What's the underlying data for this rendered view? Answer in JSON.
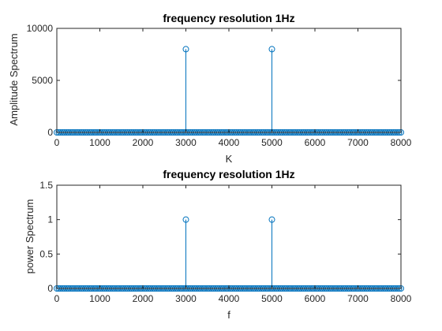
{
  "chart_data": [
    {
      "type": "stem",
      "title": "frequency resolution 1Hz",
      "xlabel": "K",
      "ylabel": "Amplitude Spectrum",
      "xlim": [
        0,
        8000
      ],
      "ylim": [
        0,
        10000
      ],
      "xticks": [
        0,
        1000,
        2000,
        3000,
        4000,
        5000,
        6000,
        7000,
        8000
      ],
      "yticks": [
        0,
        5000,
        10000
      ],
      "xtick_labels": [
        "0",
        "1000",
        "2000",
        "3000",
        "4000",
        "5000",
        "6000",
        "7000",
        "8000"
      ],
      "ytick_labels": [
        "0",
        "5000",
        "10000"
      ],
      "baseline": {
        "start": 0,
        "end": 8000,
        "value": 0,
        "description_of_spacing": 1
      },
      "peaks": [
        {
          "x": 3000,
          "y": 8000
        },
        {
          "x": 5000,
          "y": 8000
        }
      ],
      "marker_color": "#0072BD",
      "grid": false
    },
    {
      "type": "stem",
      "title": "frequency resolution 1Hz",
      "xlabel": "f",
      "ylabel": "power Spectrum",
      "xlim": [
        0,
        8000
      ],
      "ylim": [
        0,
        1.5
      ],
      "xticks": [
        0,
        1000,
        2000,
        3000,
        4000,
        5000,
        6000,
        7000,
        8000
      ],
      "yticks": [
        0,
        0.5,
        1,
        1.5
      ],
      "xtick_labels": [
        "0",
        "1000",
        "2000",
        "3000",
        "4000",
        "5000",
        "6000",
        "7000",
        "8000"
      ],
      "ytick_labels": [
        "0",
        "0.5",
        "1",
        "1.5"
      ],
      "baseline": {
        "start": 0,
        "end": 8000,
        "value": 0,
        "description_of_spacing": 1
      },
      "peaks": [
        {
          "x": 3000,
          "y": 1
        },
        {
          "x": 5000,
          "y": 1
        }
      ],
      "marker_color": "#0072BD",
      "grid": false
    }
  ]
}
